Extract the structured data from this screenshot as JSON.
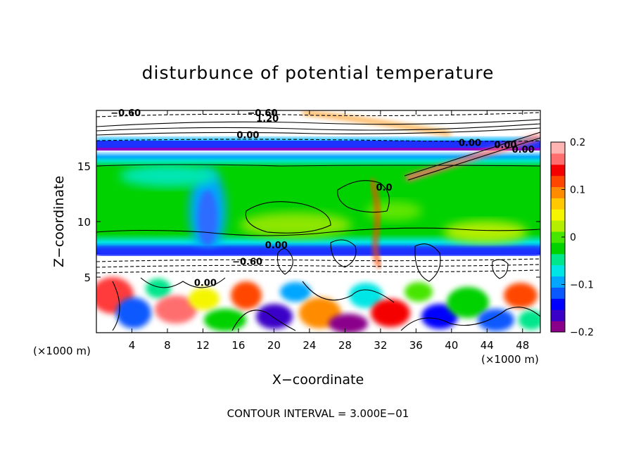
{
  "chart_data": {
    "type": "heatmap",
    "title": "disturbunce of potential temperature",
    "xlabel": "X−coordinate",
    "ylabel": "Z−coordinate",
    "x_unit_left": "(×1000 m)",
    "x_unit_right": "(×1000 m)",
    "xlim": [
      0,
      50
    ],
    "ylim": [
      0,
      20
    ],
    "x_ticks": [
      4,
      8,
      12,
      16,
      20,
      24,
      28,
      32,
      36,
      40,
      44,
      48
    ],
    "x_tick_labels": [
      "4",
      "8",
      "12",
      "16",
      "20",
      "24",
      "28",
      "32",
      "36",
      "40",
      "44",
      "48"
    ],
    "y_ticks": [
      5,
      10,
      15
    ],
    "y_tick_labels": [
      "5",
      "10",
      "15"
    ],
    "colorbar": {
      "range": [
        -0.2,
        0.2
      ],
      "ticks": [
        0.2,
        0.1,
        0,
        -0.1,
        -0.2
      ],
      "tick_labels": [
        "0.2",
        "0.1",
        "0",
        "−0.1",
        "−0.2"
      ],
      "colors": [
        "#8a008a",
        "#3a00c8",
        "#0000ff",
        "#0a58ff",
        "#00a6ff",
        "#00e6e6",
        "#00e68c",
        "#00d200",
        "#46e600",
        "#b4ee00",
        "#f5f500",
        "#ffc800",
        "#ff8c00",
        "#ff4600",
        "#f50000",
        "#ff6e6e",
        "#ffb4b4"
      ]
    },
    "contour_labels": [
      {
        "text": "−0.60",
        "x": 1.6,
        "z": 19.5
      },
      {
        "text": "−0.60",
        "x": 17.0,
        "z": 19.5
      },
      {
        "text": "1.20",
        "x": 18.0,
        "z": 19.0
      },
      {
        "text": "0.00",
        "x": 15.8,
        "z": 17.5
      },
      {
        "text": "0.00",
        "x": 40.8,
        "z": 16.8
      },
      {
        "text": "0.00",
        "x": 44.8,
        "z": 16.6
      },
      {
        "text": "0.00",
        "x": 46.8,
        "z": 16.2
      },
      {
        "text": "0.0",
        "x": 31.5,
        "z": 12.8
      },
      {
        "text": "0.00",
        "x": 19.0,
        "z": 7.6
      },
      {
        "text": "−0.60",
        "x": 15.3,
        "z": 6.1
      },
      {
        "text": "0.00",
        "x": 11.0,
        "z": 4.2
      }
    ],
    "note": "CONTOUR INTERVAL = 3.000E−01"
  }
}
